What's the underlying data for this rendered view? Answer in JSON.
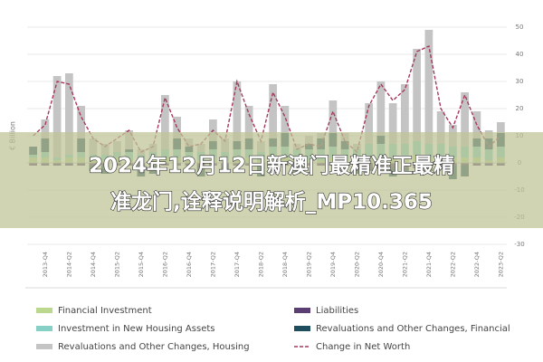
{
  "chart_data": {
    "type": "stacked-bar-line",
    "overlay_text": [
      "2024年12月12日新澳门最精准正最精",
      "准龙门,诠释说明解析_MP10.365"
    ],
    "y_label": "€ Billion",
    "categories": [
      null,
      "2013-Q4",
      null,
      "2014-Q2",
      null,
      "2014-Q4",
      null,
      "2015-Q2",
      null,
      "2015-Q4",
      null,
      "2016-Q2",
      null,
      "2016-Q4",
      null,
      "2017-Q2",
      null,
      "2017-Q4",
      null,
      "2018-Q2",
      null,
      "2018-Q4",
      null,
      "2019-Q2",
      null,
      "2019-Q4",
      null,
      "2020-Q2",
      null,
      "2020-Q4",
      null,
      "2021-Q2",
      null,
      "2021-Q4",
      null,
      "2022-Q2",
      null,
      "2022-Q4",
      null,
      "2023-Q2"
    ],
    "series": [
      {
        "name": "Financial Investment",
        "color": "#bcd88f",
        "values": [
          2,
          2,
          1,
          2,
          2,
          1,
          1,
          2,
          1,
          1,
          1,
          2,
          2,
          1,
          1,
          2,
          1,
          2,
          2,
          1,
          2,
          2,
          1,
          1,
          1,
          2,
          1,
          1,
          2,
          2,
          2,
          2,
          3,
          2,
          2,
          2,
          2,
          2,
          1,
          2
        ]
      },
      {
        "name": "Liabilities",
        "color": "#5b3f72",
        "values": [
          -1,
          -1,
          -1,
          -1,
          -1,
          -1,
          -1,
          -1,
          -1,
          -1,
          -1,
          -1,
          -1,
          -1,
          -1,
          -1,
          -1,
          -1,
          -1,
          -1,
          -1,
          -1,
          -1,
          -1,
          -1,
          -1,
          -1,
          -1,
          -2,
          -2,
          -2,
          -2,
          -2,
          -2,
          -1,
          -1,
          -1,
          -1,
          -1,
          -1
        ]
      },
      {
        "name": "Investment in New Housing Assets",
        "color": "#86d0c6",
        "values": [
          1,
          2,
          1,
          1,
          2,
          2,
          2,
          2,
          3,
          2,
          3,
          3,
          3,
          3,
          3,
          3,
          3,
          3,
          3,
          3,
          4,
          4,
          4,
          4,
          4,
          4,
          4,
          4,
          5,
          5,
          5,
          5,
          5,
          5,
          5,
          4,
          4,
          4,
          4,
          4
        ]
      },
      {
        "name": "Revaluations and Other Changes, Financial",
        "color": "#1f4e5f",
        "values": [
          3,
          5,
          0,
          0,
          5,
          -2,
          -3,
          0,
          1,
          -4,
          -3,
          0,
          4,
          2,
          -4,
          3,
          -2,
          3,
          4,
          -4,
          3,
          5,
          -3,
          2,
          4,
          5,
          3,
          -3,
          -1,
          3,
          -3,
          -1,
          0,
          -1,
          -1,
          -5,
          -4,
          3,
          4,
          5
        ]
      },
      {
        "name": "Revaluations and Other Changes, Housing",
        "color": "#c4c4c4",
        "values": [
          0,
          7,
          30,
          30,
          12,
          6,
          4,
          4,
          7,
          2,
          3,
          20,
          8,
          3,
          3,
          8,
          5,
          22,
          12,
          4,
          20,
          10,
          2,
          3,
          2,
          12,
          3,
          2,
          15,
          20,
          15,
          22,
          34,
          42,
          12,
          8,
          20,
          10,
          3,
          4
        ]
      }
    ],
    "line": {
      "name": "Change in Net Worth",
      "color": "#a6395a",
      "values": [
        10,
        14,
        30,
        29,
        17,
        9,
        6,
        9,
        12,
        4,
        6,
        24,
        13,
        6,
        7,
        12,
        8,
        30,
        18,
        8,
        26,
        17,
        5,
        7,
        6,
        19,
        8,
        4,
        21,
        29,
        23,
        27,
        41,
        43,
        20,
        13,
        25,
        14,
        6,
        10
      ]
    },
    "ylim": [
      -30,
      50
    ],
    "yticks": [
      -30,
      -20,
      -10,
      0,
      10,
      20,
      30,
      40,
      50
    ],
    "grid": true
  }
}
